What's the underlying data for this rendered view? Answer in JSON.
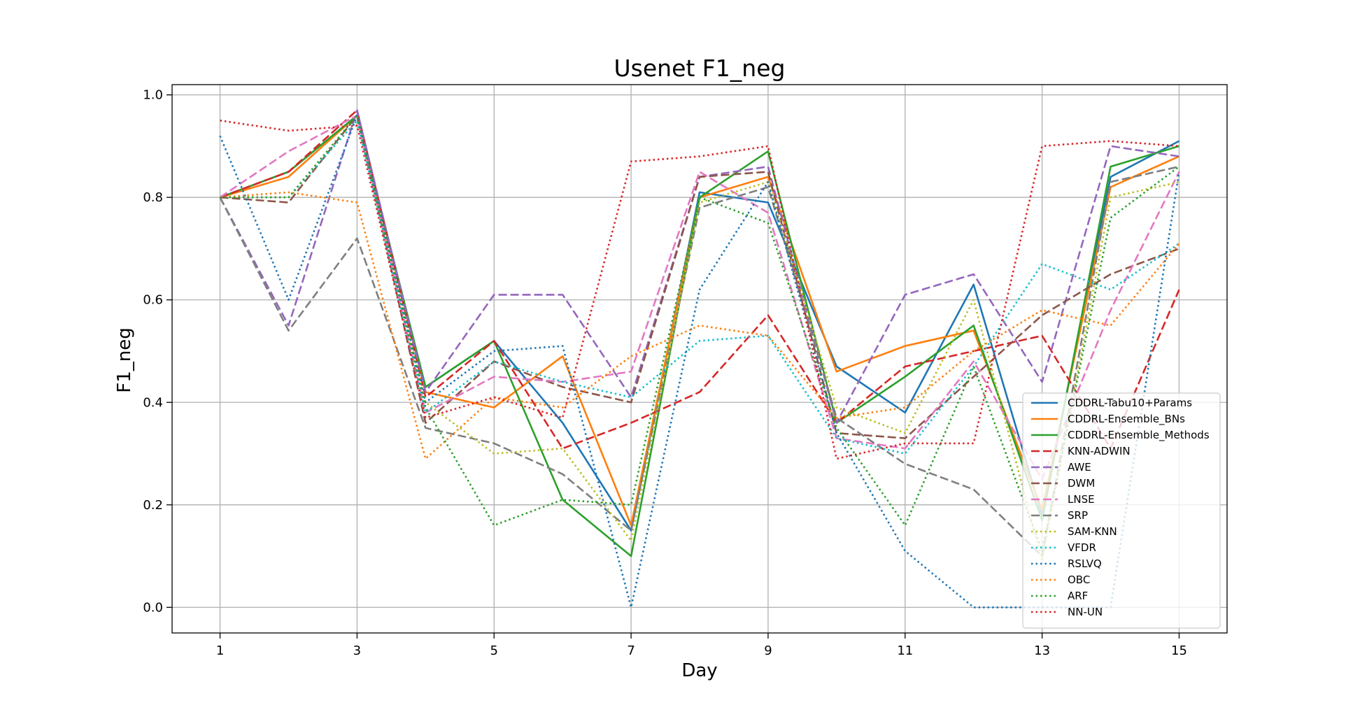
{
  "chart_data": {
    "type": "line",
    "title": "Usenet F1_neg",
    "xlabel": "Day",
    "ylabel": "F1_neg",
    "x": [
      1,
      2,
      3,
      4,
      5,
      6,
      7,
      8,
      9,
      10,
      11,
      12,
      13,
      14,
      15
    ],
    "xticks": [
      "1",
      "3",
      "5",
      "7",
      "9",
      "11",
      "13",
      "15"
    ],
    "xtick_values": [
      1,
      3,
      5,
      7,
      9,
      11,
      13,
      15
    ],
    "yticks": [
      "0.0",
      "0.2",
      "0.4",
      "0.6",
      "0.8",
      "1.0"
    ],
    "ytick_values": [
      0.0,
      0.2,
      0.4,
      0.6,
      0.8,
      1.0
    ],
    "xlim": [
      0.3,
      15.7
    ],
    "ylim": [
      -0.05,
      1.02
    ],
    "grid": true,
    "legend_position": "lower-right",
    "series": [
      {
        "name": "CDDRL-Tabu10+Params",
        "color": "#1f77b4",
        "dash": "solid",
        "values": [
          0.8,
          0.85,
          0.96,
          0.43,
          0.52,
          0.36,
          0.15,
          0.81,
          0.79,
          0.47,
          0.38,
          0.63,
          0.18,
          0.84,
          0.91
        ]
      },
      {
        "name": "CDDRL-Ensemble_BNs",
        "color": "#ff7f0e",
        "dash": "solid",
        "values": [
          0.8,
          0.84,
          0.96,
          0.42,
          0.39,
          0.49,
          0.16,
          0.8,
          0.84,
          0.46,
          0.51,
          0.54,
          0.19,
          0.82,
          0.88
        ]
      },
      {
        "name": "CDDRL-Ensemble_Methods",
        "color": "#2ca02c",
        "dash": "solid",
        "values": [
          0.8,
          0.85,
          0.96,
          0.43,
          0.52,
          0.21,
          0.1,
          0.8,
          0.89,
          0.36,
          0.45,
          0.55,
          0.17,
          0.86,
          0.9
        ]
      },
      {
        "name": "KNN-ADWIN",
        "color": "#d62728",
        "dash": "dashed",
        "values": [
          0.8,
          0.85,
          0.97,
          0.41,
          0.52,
          0.31,
          0.36,
          0.42,
          0.57,
          0.36,
          0.47,
          0.5,
          0.53,
          0.31,
          0.62
        ]
      },
      {
        "name": "AWE",
        "color": "#9467bd",
        "dash": "dashed",
        "values": [
          0.8,
          0.55,
          0.97,
          0.42,
          0.61,
          0.61,
          0.41,
          0.84,
          0.86,
          0.36,
          0.61,
          0.65,
          0.44,
          0.9,
          0.88
        ]
      },
      {
        "name": "DWM",
        "color": "#8c564b",
        "dash": "dashed",
        "values": [
          0.8,
          0.79,
          0.96,
          0.36,
          0.48,
          0.43,
          0.4,
          0.84,
          0.85,
          0.34,
          0.33,
          0.45,
          0.57,
          0.65,
          0.7
        ]
      },
      {
        "name": "LNSE",
        "color": "#e377c2",
        "dash": "dashed",
        "values": [
          0.8,
          0.89,
          0.96,
          0.38,
          0.45,
          0.44,
          0.46,
          0.85,
          0.77,
          0.33,
          0.31,
          0.48,
          0.25,
          0.58,
          0.85
        ]
      },
      {
        "name": "SRP",
        "color": "#7f7f7f",
        "dash": "dashed",
        "values": [
          0.8,
          0.54,
          0.72,
          0.35,
          0.32,
          0.26,
          0.15,
          0.78,
          0.82,
          0.37,
          0.28,
          0.23,
          0.1,
          0.83,
          0.86
        ]
      },
      {
        "name": "SAM-KNN",
        "color": "#bcbd22",
        "dash": "dotted",
        "values": [
          0.8,
          0.8,
          0.95,
          0.4,
          0.3,
          0.31,
          0.13,
          0.79,
          0.83,
          0.39,
          0.34,
          0.6,
          0.09,
          0.8,
          0.83
        ]
      },
      {
        "name": "VFDR",
        "color": "#17becf",
        "dash": "dotted",
        "values": [
          0.8,
          0.8,
          0.95,
          0.38,
          0.48,
          0.44,
          0.41,
          0.52,
          0.53,
          0.33,
          0.3,
          0.47,
          0.67,
          0.62,
          0.71
        ]
      },
      {
        "name": "RSLVQ",
        "color": "#1f77b4",
        "dash": "dotted",
        "values": [
          0.92,
          0.6,
          0.96,
          0.4,
          0.5,
          0.51,
          0.0,
          0.62,
          0.83,
          0.34,
          0.11,
          0.0,
          0.0,
          0.0,
          0.85
        ]
      },
      {
        "name": "OBC",
        "color": "#ff7f0e",
        "dash": "dotted",
        "values": [
          0.8,
          0.81,
          0.79,
          0.29,
          0.41,
          0.39,
          0.49,
          0.55,
          0.53,
          0.37,
          0.39,
          0.5,
          0.58,
          0.55,
          0.71
        ]
      },
      {
        "name": "ARF",
        "color": "#2ca02c",
        "dash": "dotted",
        "values": [
          0.8,
          0.8,
          0.96,
          0.39,
          0.16,
          0.21,
          0.2,
          0.8,
          0.75,
          0.35,
          0.16,
          0.47,
          0.11,
          0.76,
          0.86
        ]
      },
      {
        "name": "NN-UN",
        "color": "#d62728",
        "dash": "dotted",
        "values": [
          0.95,
          0.93,
          0.94,
          0.37,
          0.41,
          0.37,
          0.87,
          0.88,
          0.9,
          0.29,
          0.32,
          0.32,
          0.9,
          0.91,
          0.9
        ]
      }
    ]
  }
}
